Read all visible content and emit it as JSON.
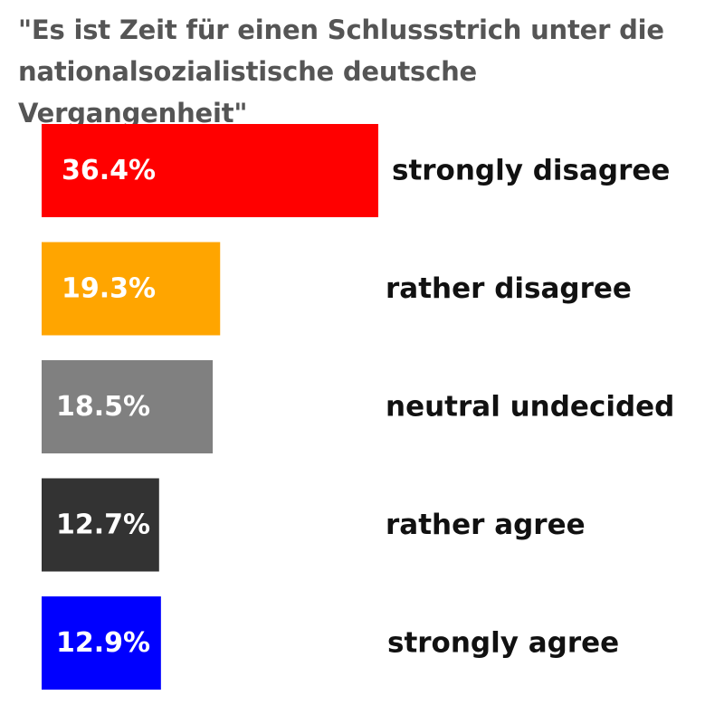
{
  "chart_data": {
    "type": "bar",
    "orientation": "horizontal",
    "title": "\"Es ist Zeit für einen Schlussstrich unter die nationalsozialistische deutsche Vergangenheit\"",
    "categories": [
      "strongly disagree",
      "rather disagree",
      "neutral undecided",
      "rather agree",
      "strongly agree"
    ],
    "values": [
      36.4,
      19.3,
      18.5,
      12.7,
      12.9
    ],
    "value_labels": [
      "36.4%",
      "19.3%",
      "18.5%",
      "12.7%",
      "12.9%"
    ],
    "colors": [
      "#ff0000",
      "#ffa500",
      "#808080",
      "#333333",
      "#0000ff"
    ],
    "unit": "%",
    "xlim": [
      0,
      36.4
    ],
    "grid": false,
    "legend": "none"
  }
}
